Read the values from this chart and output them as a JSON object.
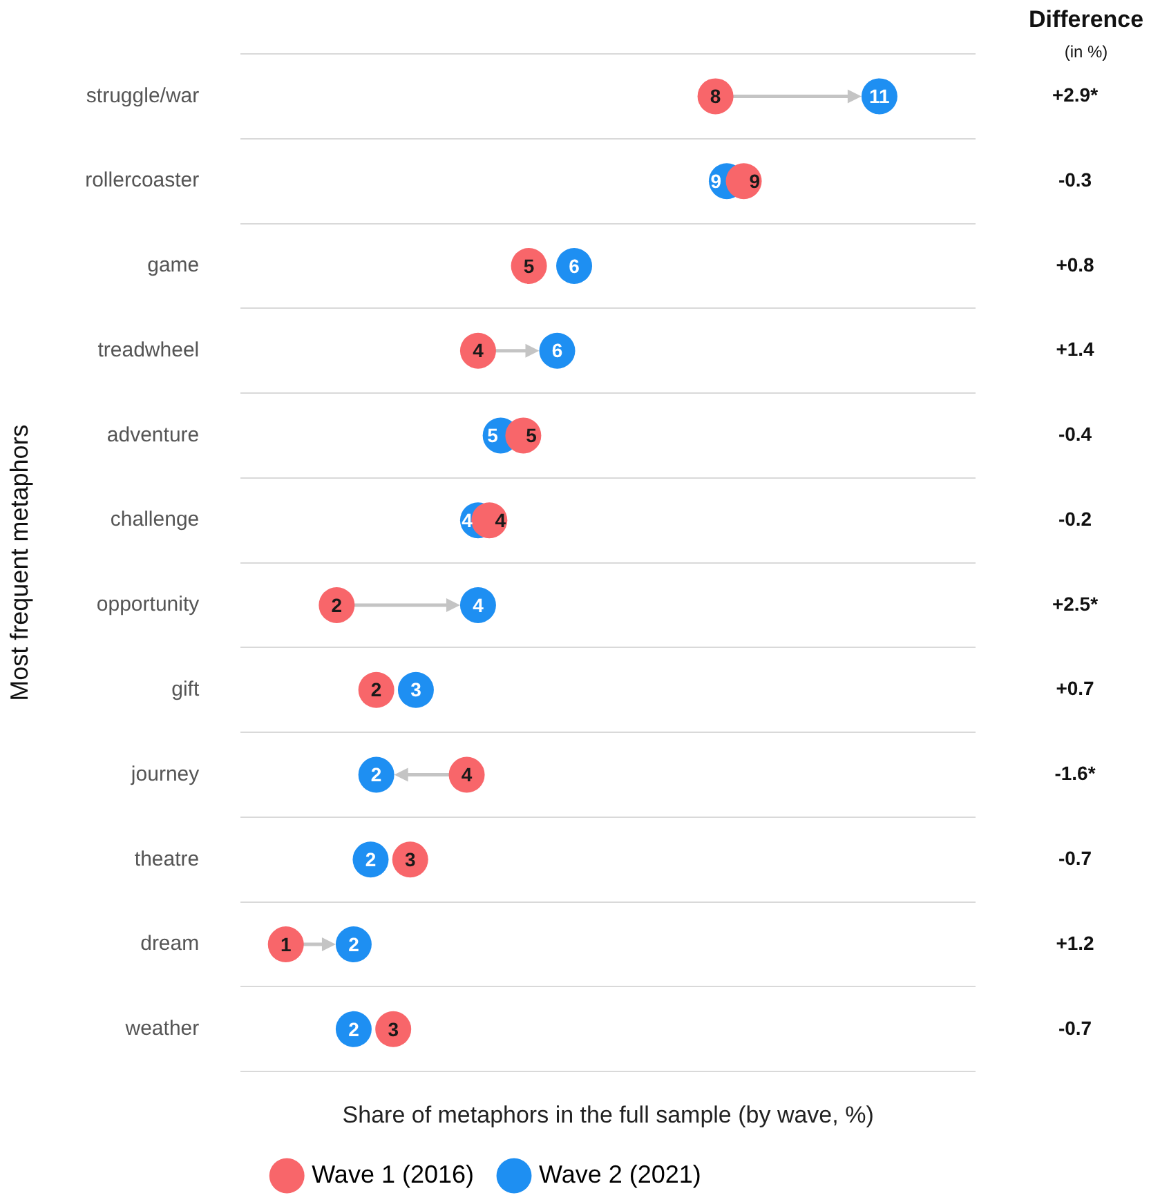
{
  "chart_data": {
    "type": "scatter",
    "orientation": "horizontal",
    "xlabel": "Share of metaphors in the full sample (by wave, %)",
    "ylabel": "Most frequent metaphors",
    "categories": [
      "struggle/war",
      "rollercoaster",
      "game",
      "treadwheel",
      "adventure",
      "challenge",
      "opportunity",
      "gift",
      "journey",
      "theatre",
      "dream",
      "weather"
    ],
    "xlim": [
      0,
      13
    ],
    "tick_labels": "y",
    "grid": "y",
    "legend": "bottom",
    "marker": "circle",
    "series": [
      {
        "name": "Wave 1 (2016)",
        "color": "#f8666a",
        "values": [
          8.4,
          8.9,
          5.1,
          4.2,
          5.0,
          4.4,
          1.7,
          2.4,
          4.0,
          3.0,
          0.8,
          2.7
        ],
        "value_labels": [
          "8",
          "9",
          "5",
          "4",
          "5",
          "4",
          "2",
          "2",
          "4",
          "3",
          "1",
          "3"
        ]
      },
      {
        "name": "Wave 2 (2021)",
        "color": "#1e8ff2",
        "values": [
          11.3,
          8.6,
          5.9,
          5.6,
          4.6,
          4.2,
          4.2,
          3.1,
          2.4,
          2.3,
          2.0,
          2.0
        ],
        "value_labels": [
          "11",
          "9",
          "6",
          "6",
          "5",
          "4",
          "4",
          "3",
          "2",
          "2",
          "2",
          "2"
        ]
      }
    ],
    "annotations": [
      "Difference",
      "(in %)",
      "+2.9*",
      "-0.3",
      "+0.8",
      "+1.4",
      "-0.4",
      "-0.2",
      "+2.5*",
      "+0.7",
      "-1.6*",
      "-0.7",
      "+1.2",
      "-0.7"
    ]
  }
}
